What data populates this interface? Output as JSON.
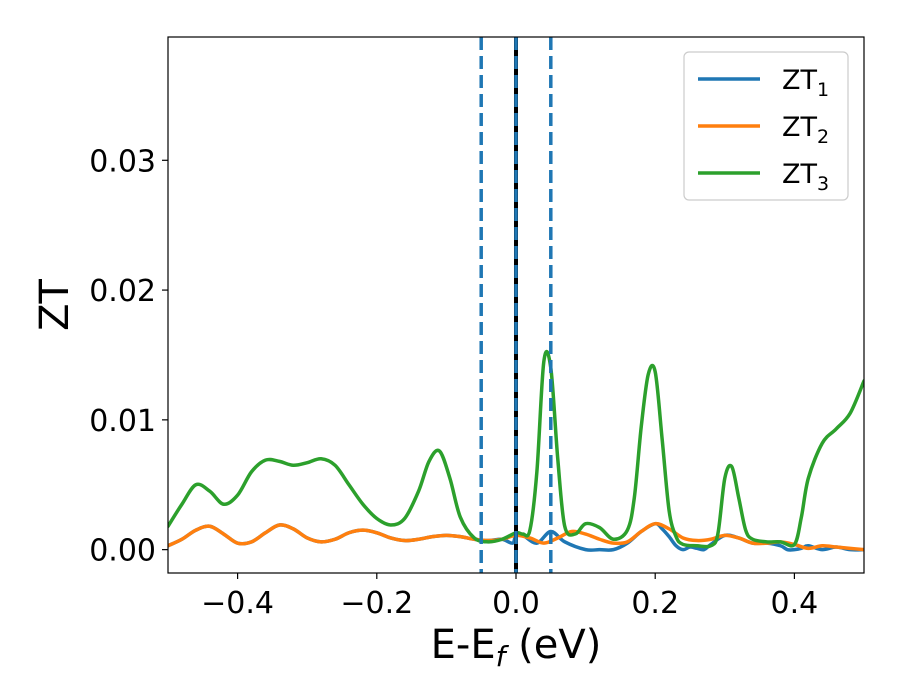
{
  "chart_data": {
    "type": "line",
    "xlabel": {
      "main": "E-E",
      "sub": "f",
      "unit": " (eV)"
    },
    "ylabel": "ZT",
    "xlim": [
      -0.5,
      0.5
    ],
    "ylim": [
      -0.0018,
      0.0395
    ],
    "x_ticks": [
      -0.4,
      -0.2,
      0.0,
      0.2,
      0.4
    ],
    "x_tick_labels": [
      "−0.4",
      "−0.2",
      "0.0",
      "0.2",
      "0.4"
    ],
    "y_ticks": [
      0.0,
      0.01,
      0.02,
      0.03
    ],
    "y_tick_labels": [
      "0.00",
      "0.01",
      "0.02",
      "0.03"
    ],
    "grid": false,
    "legend_position": "top-right",
    "vlines": [
      {
        "x": -0.05,
        "style": "dashed",
        "color": "#1f77b4"
      },
      {
        "x": 0.05,
        "style": "dashed",
        "color": "#1f77b4"
      },
      {
        "x": 0.0,
        "style": "solid",
        "color": "#000000"
      },
      {
        "x": 0.0,
        "style": "dashed",
        "color": "#1f77b4"
      }
    ],
    "series": [
      {
        "name": "ZT",
        "sub": "1",
        "color": "#1f77b4",
        "x": [
          -0.5,
          -0.48,
          -0.46,
          -0.44,
          -0.42,
          -0.4,
          -0.38,
          -0.36,
          -0.34,
          -0.32,
          -0.3,
          -0.28,
          -0.26,
          -0.24,
          -0.22,
          -0.2,
          -0.18,
          -0.16,
          -0.14,
          -0.12,
          -0.1,
          -0.08,
          -0.06,
          -0.04,
          -0.02,
          -0.005,
          0.0,
          0.01,
          0.03,
          0.05,
          0.07,
          0.1,
          0.12,
          0.14,
          0.16,
          0.18,
          0.2,
          0.21,
          0.22,
          0.23,
          0.24,
          0.25,
          0.26,
          0.27,
          0.28,
          0.3,
          0.32,
          0.34,
          0.36,
          0.38,
          0.39,
          0.4,
          0.41,
          0.42,
          0.44,
          0.46,
          0.48,
          0.5
        ],
        "y": [
          0.0003,
          0.0008,
          0.0015,
          0.0018,
          0.0012,
          0.0005,
          0.0006,
          0.0013,
          0.0019,
          0.0016,
          0.0009,
          0.0006,
          0.0008,
          0.0013,
          0.0015,
          0.0013,
          0.0009,
          0.0007,
          0.0008,
          0.001,
          0.0011,
          0.001,
          0.0008,
          0.0007,
          0.0008,
          0.0005,
          0.0011,
          0.0011,
          0.0005,
          0.0014,
          0.0006,
          0.0,
          0.0,
          0.0,
          0.0005,
          0.0014,
          0.002,
          0.0016,
          0.001,
          0.0003,
          0.0,
          0.0002,
          0.0001,
          0.0,
          0.0004,
          0.0011,
          0.0009,
          0.0005,
          0.0005,
          0.0003,
          0.0,
          0.0,
          0.0001,
          0.0003,
          0.0,
          0.0002,
          0.0,
          0.0
        ]
      },
      {
        "name": "ZT",
        "sub": "2",
        "color": "#ff7f0e",
        "x": [
          -0.5,
          -0.48,
          -0.46,
          -0.44,
          -0.42,
          -0.4,
          -0.38,
          -0.36,
          -0.34,
          -0.32,
          -0.3,
          -0.28,
          -0.26,
          -0.24,
          -0.22,
          -0.2,
          -0.18,
          -0.16,
          -0.14,
          -0.12,
          -0.1,
          -0.08,
          -0.06,
          -0.04,
          -0.02,
          0.0,
          0.02,
          0.04,
          0.06,
          0.08,
          0.1,
          0.12,
          0.14,
          0.16,
          0.18,
          0.2,
          0.22,
          0.24,
          0.26,
          0.28,
          0.3,
          0.32,
          0.34,
          0.36,
          0.38,
          0.4,
          0.42,
          0.44,
          0.46,
          0.48,
          0.5
        ],
        "y": [
          0.0003,
          0.0008,
          0.0015,
          0.0018,
          0.0012,
          0.0005,
          0.0006,
          0.0013,
          0.0019,
          0.0016,
          0.0009,
          0.0006,
          0.0008,
          0.0013,
          0.0015,
          0.0013,
          0.0009,
          0.0007,
          0.0008,
          0.001,
          0.0011,
          0.001,
          0.0008,
          0.0007,
          0.0008,
          0.0011,
          0.0009,
          0.0005,
          0.0009,
          0.0014,
          0.0012,
          0.0008,
          0.0005,
          0.0006,
          0.0014,
          0.002,
          0.0016,
          0.0009,
          0.0007,
          0.0008,
          0.0011,
          0.0009,
          0.0005,
          0.0005,
          0.0006,
          0.0004,
          0.0001,
          0.0003,
          0.0002,
          0.0001,
          0.0
        ]
      },
      {
        "name": "ZT",
        "sub": "3",
        "color": "#2ca02c",
        "x": [
          -0.5,
          -0.48,
          -0.46,
          -0.44,
          -0.42,
          -0.4,
          -0.38,
          -0.36,
          -0.34,
          -0.32,
          -0.3,
          -0.28,
          -0.26,
          -0.24,
          -0.22,
          -0.2,
          -0.18,
          -0.16,
          -0.14,
          -0.125,
          -0.11,
          -0.095,
          -0.08,
          -0.06,
          -0.04,
          -0.02,
          0.0,
          0.01,
          0.02,
          0.03,
          0.04,
          0.05,
          0.06,
          0.07,
          0.085,
          0.1,
          0.12,
          0.14,
          0.16,
          0.17,
          0.18,
          0.19,
          0.2,
          0.21,
          0.22,
          0.23,
          0.24,
          0.26,
          0.28,
          0.29,
          0.3,
          0.31,
          0.32,
          0.33,
          0.34,
          0.36,
          0.38,
          0.4,
          0.41,
          0.42,
          0.44,
          0.46,
          0.48,
          0.5
        ],
        "y": [
          0.0018,
          0.0035,
          0.005,
          0.0045,
          0.0035,
          0.0042,
          0.006,
          0.0069,
          0.0068,
          0.0065,
          0.0067,
          0.007,
          0.0065,
          0.005,
          0.0035,
          0.0024,
          0.0019,
          0.0024,
          0.0045,
          0.0068,
          0.0076,
          0.0055,
          0.0025,
          0.0009,
          0.0006,
          0.0008,
          0.0013,
          0.0012,
          0.0015,
          0.006,
          0.0145,
          0.014,
          0.007,
          0.0018,
          0.0012,
          0.002,
          0.0017,
          0.0008,
          0.0015,
          0.004,
          0.0095,
          0.0135,
          0.0137,
          0.0085,
          0.003,
          0.001,
          0.0004,
          0.0003,
          0.0003,
          0.0012,
          0.0055,
          0.0064,
          0.004,
          0.0015,
          0.0008,
          0.0006,
          0.0006,
          0.0004,
          0.0025,
          0.0055,
          0.0082,
          0.0093,
          0.0105,
          0.013
        ]
      }
    ]
  }
}
